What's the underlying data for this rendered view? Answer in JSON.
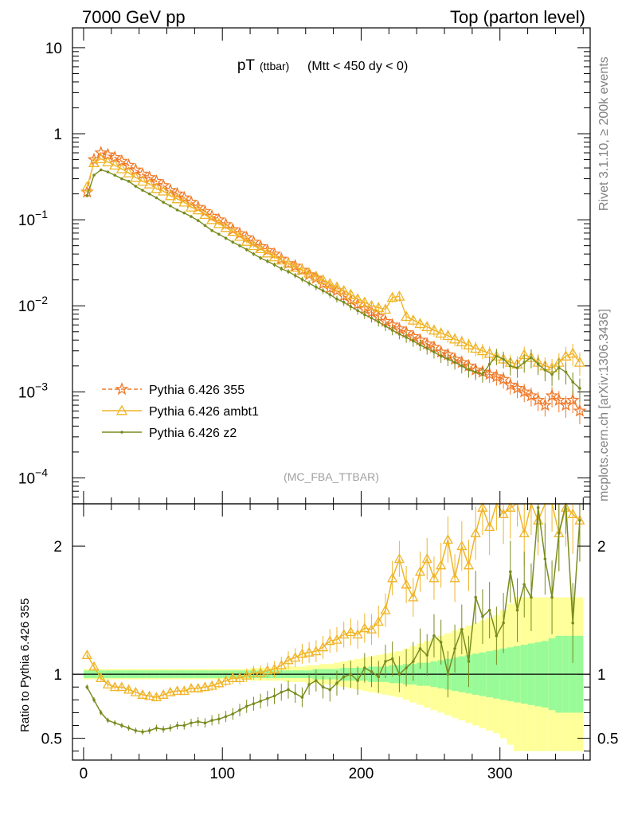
{
  "header": {
    "left": "7000 GeV pp",
    "right": "Top (parton level)"
  },
  "side_labels": {
    "rivet": "Rivet 3.1.10, ≥ 200k events",
    "mcplots": "mcplots.cern.ch [arXiv:1306.3436]"
  },
  "chart_data": {
    "type": "line",
    "title": {
      "main": "pT",
      "sub": "(ttbar)",
      "cut": "(Mtt < 450 dy < 0)"
    },
    "analysis_tag": "(MC_FBA_TTBAR)",
    "xlabel": "",
    "ylabel_main": "",
    "ylabel_ratio": "Ratio to Pythia 6.426 355",
    "xlim": [
      -8,
      365
    ],
    "main_ylim": [
      5e-05,
      17
    ],
    "main_yscale": "log",
    "ratio_ylim": [
      0.33,
      2.33
    ],
    "x_ticks": [
      "0",
      "100",
      "200",
      "300"
    ],
    "main_y_ticks": [
      {
        "base": "10",
        "exp": ""
      },
      {
        "base": "1",
        "exp": ""
      },
      {
        "base": "10",
        "exp": "−1"
      },
      {
        "base": "10",
        "exp": "−2"
      },
      {
        "base": "10",
        "exp": "−3"
      },
      {
        "base": "10",
        "exp": "−4"
      }
    ],
    "ratio_y_ticks": [
      "2",
      "1",
      "0.5"
    ],
    "legend": [
      {
        "name": "Pythia 6.426 355",
        "color": "#f07828",
        "marker": "star",
        "dashed": true
      },
      {
        "name": "Pythia 6.426 ambt1",
        "color": "#f0b428",
        "marker": "triangle",
        "dashed": false
      },
      {
        "name": "Pythia 6.426 z2",
        "color": "#788c1e",
        "marker": "dot",
        "dashed": false
      }
    ],
    "bin_width": 5,
    "x": [
      2.5,
      7.5,
      12.5,
      17.5,
      22.5,
      27.5,
      32.5,
      37.5,
      42.5,
      47.5,
      52.5,
      57.5,
      62.5,
      67.5,
      72.5,
      77.5,
      82.5,
      87.5,
      92.5,
      97.5,
      102.5,
      107.5,
      112.5,
      117.5,
      122.5,
      127.5,
      132.5,
      137.5,
      142.5,
      147.5,
      152.5,
      157.5,
      162.5,
      167.5,
      172.5,
      177.5,
      182.5,
      187.5,
      192.5,
      197.5,
      202.5,
      207.5,
      212.5,
      217.5,
      222.5,
      227.5,
      232.5,
      237.5,
      242.5,
      247.5,
      252.5,
      257.5,
      262.5,
      267.5,
      272.5,
      277.5,
      282.5,
      287.5,
      292.5,
      297.5,
      302.5,
      307.5,
      312.5,
      317.5,
      322.5,
      327.5,
      332.5,
      337.5,
      342.5,
      347.5,
      352.5,
      357.5
    ],
    "series": [
      {
        "name": "Pythia 6.426 355",
        "values": [
          0.21,
          0.5,
          0.6,
          0.57,
          0.53,
          0.48,
          0.43,
          0.38,
          0.34,
          0.31,
          0.28,
          0.25,
          0.22,
          0.2,
          0.18,
          0.16,
          0.14,
          0.125,
          0.11,
          0.1,
          0.088,
          0.077,
          0.069,
          0.062,
          0.055,
          0.049,
          0.044,
          0.04,
          0.035,
          0.031,
          0.029,
          0.026,
          0.023,
          0.021,
          0.018,
          0.016,
          0.015,
          0.013,
          0.0116,
          0.0104,
          0.0092,
          0.0084,
          0.0075,
          0.0066,
          0.006,
          0.0054,
          0.0049,
          0.0044,
          0.004,
          0.0036,
          0.0033,
          0.0029,
          0.0027,
          0.0024,
          0.0022,
          0.002,
          0.0018,
          0.0017,
          0.0016,
          0.0015,
          0.0014,
          0.0012,
          0.0011,
          0.001,
          0.0009,
          0.0008,
          0.0007,
          0.0009,
          0.0008,
          0.0007,
          0.0008,
          0.0006
        ]
      },
      {
        "name": "Pythia 6.426 ambt1",
        "values": [
          0.24,
          0.46,
          0.51,
          0.47,
          0.43,
          0.39,
          0.35,
          0.31,
          0.28,
          0.26,
          0.23,
          0.215,
          0.19,
          0.175,
          0.16,
          0.14,
          0.13,
          0.115,
          0.1,
          0.09,
          0.081,
          0.073,
          0.064,
          0.056,
          0.05,
          0.046,
          0.041,
          0.037,
          0.034,
          0.031,
          0.028,
          0.026,
          0.024,
          0.022,
          0.02,
          0.018,
          0.0165,
          0.015,
          0.0135,
          0.012,
          0.011,
          0.01,
          0.0095,
          0.0091,
          0.0125,
          0.0129,
          0.0075,
          0.0068,
          0.0062,
          0.0057,
          0.0052,
          0.0048,
          0.0045,
          0.0041,
          0.0038,
          0.0035,
          0.0032,
          0.003,
          0.0028,
          0.0026,
          0.0024,
          0.0022,
          0.0021,
          0.0027,
          0.0025,
          0.0022,
          0.002,
          0.0019,
          0.0022,
          0.0026,
          0.0028,
          0.0022
        ]
      },
      {
        "name": "Pythia 6.426 z2",
        "values": [
          0.19,
          0.33,
          0.38,
          0.36,
          0.33,
          0.3,
          0.28,
          0.245,
          0.22,
          0.2,
          0.18,
          0.16,
          0.145,
          0.13,
          0.12,
          0.109,
          0.098,
          0.086,
          0.075,
          0.068,
          0.061,
          0.055,
          0.05,
          0.045,
          0.04,
          0.036,
          0.033,
          0.03,
          0.027,
          0.025,
          0.0225,
          0.0203,
          0.0183,
          0.0165,
          0.015,
          0.0135,
          0.012,
          0.011,
          0.0098,
          0.0088,
          0.0079,
          0.0072,
          0.0065,
          0.0058,
          0.0052,
          0.0047,
          0.0043,
          0.0039,
          0.0035,
          0.0032,
          0.0029,
          0.0026,
          0.0024,
          0.0022,
          0.002,
          0.0018,
          0.0017,
          0.0016,
          0.0021,
          0.0026,
          0.0024,
          0.002,
          0.0019,
          0.0022,
          0.0025,
          0.0021,
          0.0018,
          0.0016,
          0.0019,
          0.0017,
          0.0013,
          0.0011
        ]
      }
    ],
    "ratio_series": [
      {
        "name": "Pythia 6.426 ambt1",
        "values": [
          1.15,
          1.06,
          0.97,
          0.92,
          0.9,
          0.9,
          0.88,
          0.86,
          0.84,
          0.83,
          0.82,
          0.84,
          0.86,
          0.87,
          0.87,
          0.89,
          0.89,
          0.9,
          0.91,
          0.93,
          0.95,
          0.97,
          0.97,
          0.99,
          1.01,
          1.01,
          1.03,
          1.04,
          1.07,
          1.11,
          1.13,
          1.16,
          1.17,
          1.18,
          1.21,
          1.26,
          1.27,
          1.31,
          1.33,
          1.31,
          1.36,
          1.35,
          1.41,
          1.5,
          1.75,
          1.9,
          1.7,
          1.6,
          1.8,
          1.9,
          1.75,
          1.85,
          2.05,
          1.75,
          2.0,
          1.85,
          2.1,
          2.3,
          2.15,
          2.35,
          2.25,
          2.3,
          2.4,
          2.1,
          2.35,
          2.2,
          2.35,
          2.4,
          2.1,
          2.3,
          2.25,
          2.2
        ]
      },
      {
        "name": "Pythia 6.426 z2",
        "values": [
          0.9,
          0.8,
          0.7,
          0.64,
          0.62,
          0.6,
          0.58,
          0.56,
          0.55,
          0.56,
          0.58,
          0.57,
          0.58,
          0.6,
          0.6,
          0.62,
          0.63,
          0.62,
          0.64,
          0.65,
          0.67,
          0.69,
          0.72,
          0.75,
          0.77,
          0.79,
          0.81,
          0.83,
          0.86,
          0.88,
          0.85,
          0.82,
          0.92,
          0.95,
          0.9,
          0.88,
          0.93,
          0.98,
          1.0,
          0.95,
          1.05,
          1.02,
          0.98,
          1.1,
          1.12,
          1.0,
          1.05,
          1.1,
          1.2,
          1.15,
          1.3,
          1.25,
          1.0,
          1.2,
          1.35,
          1.1,
          1.6,
          1.45,
          1.5,
          1.3,
          1.4,
          1.8,
          1.5,
          1.7,
          1.6,
          2.3,
          1.9,
          1.6,
          2.1,
          2.4,
          1.4,
          2.2
        ]
      }
    ],
    "uncertainty_bands": {
      "inner_color": "#98fb98",
      "outer_color": "#ffff99",
      "inner_halfwidth": [
        0.03,
        0.03,
        0.03,
        0.03,
        0.03,
        0.03,
        0.03,
        0.03,
        0.03,
        0.03,
        0.03,
        0.03,
        0.03,
        0.03,
        0.03,
        0.03,
        0.03,
        0.03,
        0.03,
        0.03,
        0.03,
        0.03,
        0.03,
        0.03,
        0.03,
        0.03,
        0.03,
        0.03,
        0.03,
        0.03,
        0.03,
        0.03,
        0.03,
        0.04,
        0.04,
        0.04,
        0.04,
        0.05,
        0.05,
        0.05,
        0.05,
        0.06,
        0.06,
        0.06,
        0.07,
        0.07,
        0.08,
        0.08,
        0.09,
        0.09,
        0.1,
        0.11,
        0.12,
        0.13,
        0.14,
        0.15,
        0.16,
        0.17,
        0.18,
        0.19,
        0.2,
        0.21,
        0.22,
        0.23,
        0.24,
        0.25,
        0.26,
        0.28,
        0.3,
        0.3,
        0.3,
        0.3
      ],
      "outer_halfwidth": [
        0.04,
        0.04,
        0.04,
        0.04,
        0.04,
        0.04,
        0.04,
        0.04,
        0.04,
        0.04,
        0.04,
        0.04,
        0.04,
        0.04,
        0.04,
        0.04,
        0.04,
        0.04,
        0.04,
        0.04,
        0.04,
        0.04,
        0.04,
        0.04,
        0.05,
        0.05,
        0.05,
        0.05,
        0.05,
        0.06,
        0.06,
        0.06,
        0.07,
        0.07,
        0.08,
        0.08,
        0.09,
        0.1,
        0.11,
        0.12,
        0.13,
        0.14,
        0.15,
        0.16,
        0.17,
        0.18,
        0.2,
        0.22,
        0.24,
        0.26,
        0.28,
        0.3,
        0.32,
        0.34,
        0.36,
        0.38,
        0.4,
        0.42,
        0.44,
        0.46,
        0.5,
        0.55,
        0.6,
        0.6,
        0.6,
        0.6,
        0.6,
        0.6,
        0.6,
        0.6,
        0.6,
        0.6
      ]
    }
  }
}
